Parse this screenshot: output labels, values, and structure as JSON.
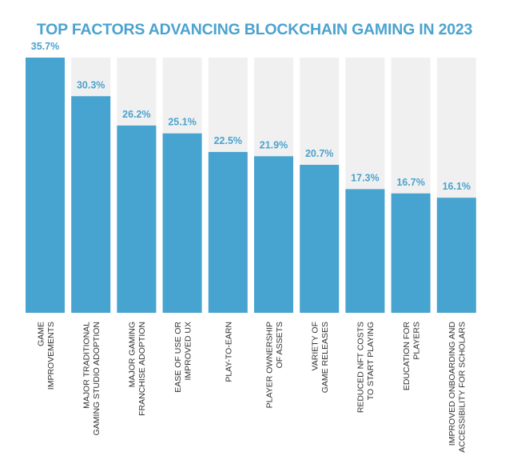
{
  "chart_data": {
    "type": "bar",
    "title": "TOP FACTORS ADVANCING BLOCKCHAIN GAMING IN 2023",
    "xlabel": "",
    "ylabel": "",
    "ylim": [
      0,
      35.7
    ],
    "grid": false,
    "categories": [
      [
        "GAME",
        "IMPROVEMENTS"
      ],
      [
        "MAJOR TRADITIONAL",
        "GAMING STUDIO ADOPTION"
      ],
      [
        "MAJOR GAMING",
        "FRANCHISE ADOPTION"
      ],
      [
        "EASE OF USE OR",
        "IMPROVED UX"
      ],
      [
        "PLAY-TO-EARN"
      ],
      [
        "PLAYER OWNERSHIP",
        "OF ASSETS"
      ],
      [
        "VARIETY OF",
        "GAME RELEASES"
      ],
      [
        "REDUCED NFT COSTS",
        "TO START PLAYING"
      ],
      [
        "EDUCATION FOR",
        "PLAYERS"
      ],
      [
        "IMPROVED ONBOARDING AND",
        "ACCESSIBILITY FOR SCHOLARS"
      ]
    ],
    "values": [
      35.7,
      30.3,
      26.2,
      25.1,
      22.5,
      21.9,
      20.7,
      17.3,
      16.7,
      16.1
    ],
    "value_labels": [
      "35.7%",
      "30.3%",
      "26.2%",
      "25.1%",
      "22.5%",
      "21.9%",
      "20.7%",
      "17.3%",
      "16.7%",
      "16.1%"
    ],
    "colors": {
      "bar": "#47a3cf",
      "track": "#f0f0f0",
      "title": "#4aa3cf",
      "label": "#4aa3cf",
      "category": "#333333"
    }
  }
}
